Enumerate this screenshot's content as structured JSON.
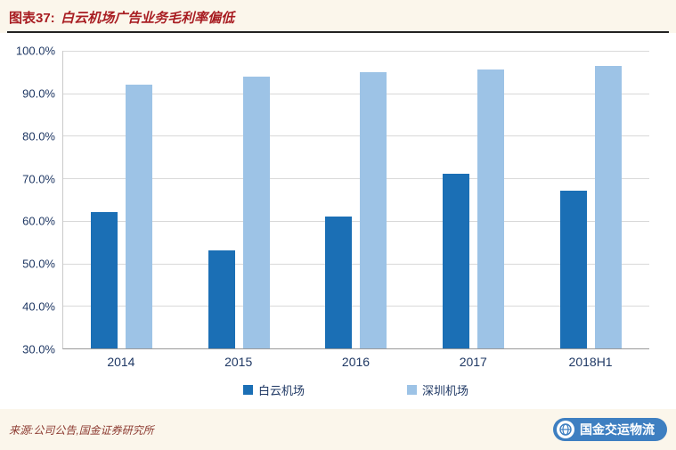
{
  "header": {
    "title_prefix": "图表37:",
    "title": "白云机场广告业务毛利率偏低"
  },
  "chart_data": {
    "type": "bar",
    "title": "白云机场广告业务毛利率偏低",
    "categories": [
      "2014",
      "2015",
      "2016",
      "2017",
      "2018H1"
    ],
    "series": [
      {
        "name": "白云机场",
        "color": "#1B6FB5",
        "values": [
          62.0,
          53.0,
          61.0,
          71.0,
          67.0
        ]
      },
      {
        "name": "深圳机场",
        "color": "#9DC3E6",
        "values": [
          92.0,
          94.0,
          95.0,
          95.5,
          96.5
        ]
      }
    ],
    "ylim": [
      30,
      100
    ],
    "yticks": [
      {
        "value": 100,
        "label": "100.0%"
      },
      {
        "value": 90,
        "label": "90.0%"
      },
      {
        "value": 80,
        "label": "80.0%"
      },
      {
        "value": 70,
        "label": "70.0%"
      },
      {
        "value": 60,
        "label": "60.0%"
      },
      {
        "value": 50,
        "label": "50.0%"
      },
      {
        "value": 40,
        "label": "40.0%"
      },
      {
        "value": 30,
        "label": "30.0%"
      }
    ],
    "grid": true,
    "legend_position": "bottom",
    "unit": "percent"
  },
  "footer": {
    "source": "来源:公司公告,国金证券研究所",
    "watermark": "国金交运物流"
  },
  "colors": {
    "page_background": "#FBF6EB",
    "title_red": "#A81D22",
    "axis_navy": "#1F3864",
    "bar_dark_blue": "#1B6FB5",
    "bar_light_blue": "#9DC3E6",
    "watermark_blue": "#3E7FC1"
  }
}
